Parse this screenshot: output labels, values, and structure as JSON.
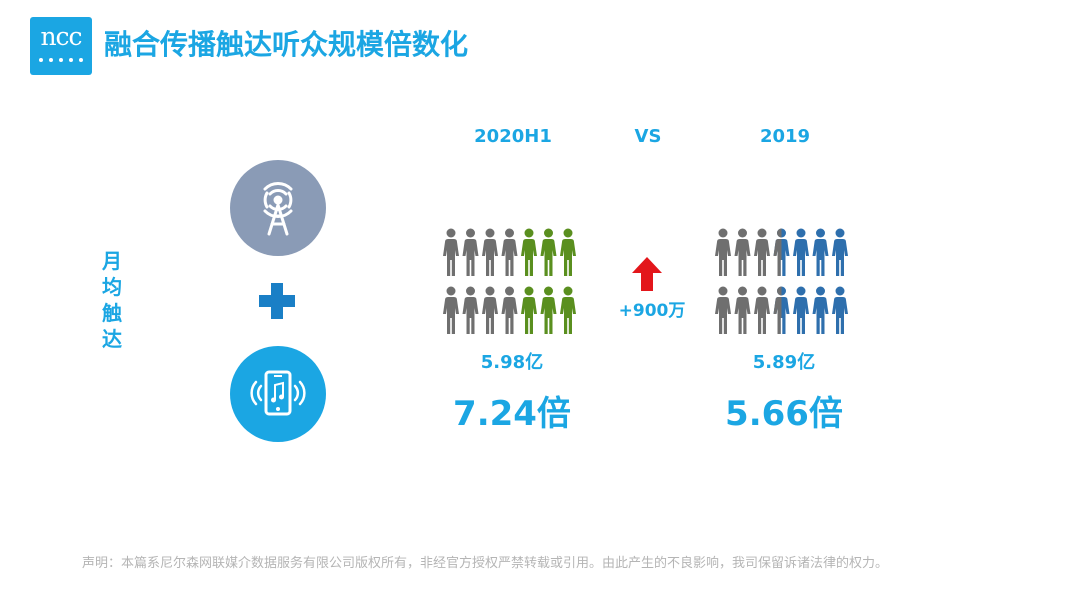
{
  "logo": {
    "text": "ncc"
  },
  "title": "融合传播触达听众规模倍数化",
  "side_label": [
    "月",
    "均",
    "触",
    "达"
  ],
  "icons": {
    "top": "radio-tower-icon",
    "plus": "plus-icon",
    "bottom": "music-phone-icon"
  },
  "comparison": {
    "left": {
      "period": "2020H1",
      "value": "5.98亿",
      "multiple": "7.24倍",
      "highlight_color": "#5a8f1f",
      "people_total": 14,
      "people_highlight": 6
    },
    "vs": "VS",
    "right": {
      "period": "2019",
      "value": "5.89亿",
      "multiple": "5.66倍",
      "highlight_color": "#2e6fad",
      "people_total": 14,
      "people_highlight": 6.5
    },
    "change": {
      "label": "+900万",
      "arrow_color": "#e3161b"
    }
  },
  "colors": {
    "accent": "#1ba6e3",
    "gray": "#6f6f6f",
    "tower_circle": "#8a9bb6"
  },
  "disclaimer": "声明：本篇系尼尔森网联媒介数据服务有限公司版权所有，非经官方授权严禁转载或引用。由此产生的不良影响，我司保留诉诸法律的权力。"
}
